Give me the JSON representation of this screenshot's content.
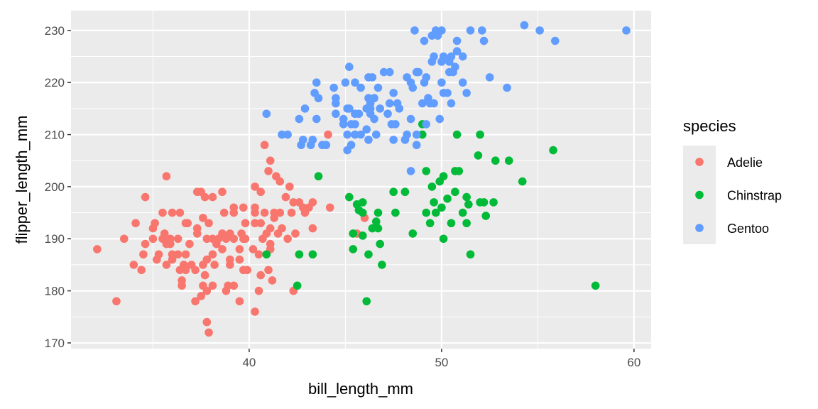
{
  "chart_data": {
    "type": "scatter",
    "xlabel": "bill_length_mm",
    "ylabel": "flipper_length_mm",
    "xlim": [
      30.74,
      60.89
    ],
    "ylim": [
      168.9,
      233.8
    ],
    "xticks": [
      40,
      50,
      60
    ],
    "xtick_labels": [
      "40",
      "50",
      "60"
    ],
    "xminor": [
      35,
      45,
      55
    ],
    "yticks": [
      170,
      180,
      190,
      200,
      210,
      220,
      230
    ],
    "ytick_labels": [
      "170",
      "180",
      "190",
      "200",
      "210",
      "220",
      "230"
    ],
    "yminor": [
      175,
      185,
      195,
      205,
      215,
      225
    ],
    "grid": true,
    "legend": {
      "title": "species",
      "placement": "right"
    },
    "series": [
      {
        "name": "Adelie",
        "color": "#F8766D",
        "points": [
          [
            32.1,
            188
          ],
          [
            33.1,
            178
          ],
          [
            33.5,
            190
          ],
          [
            34.1,
            193
          ],
          [
            34.0,
            185
          ],
          [
            34.4,
            184
          ],
          [
            34.5,
            187
          ],
          [
            34.6,
            198
          ],
          [
            34.6,
            189
          ],
          [
            35.0,
            190
          ],
          [
            35.0,
            192
          ],
          [
            35.1,
            193
          ],
          [
            35.2,
            186
          ],
          [
            35.3,
            187
          ],
          [
            35.5,
            195
          ],
          [
            35.6,
            191
          ],
          [
            35.5,
            190
          ],
          [
            35.7,
            202
          ],
          [
            35.7,
            185
          ],
          [
            35.7,
            189
          ],
          [
            35.9,
            189
          ],
          [
            35.9,
            190
          ],
          [
            36.0,
            195
          ],
          [
            36.0,
            187
          ],
          [
            36.0,
            186
          ],
          [
            36.3,
            187
          ],
          [
            36.3,
            190
          ],
          [
            36.4,
            195
          ],
          [
            36.4,
            184
          ],
          [
            36.5,
            182
          ],
          [
            36.5,
            181
          ],
          [
            36.6,
            185
          ],
          [
            36.7,
            187
          ],
          [
            36.7,
            184
          ],
          [
            36.7,
            193
          ],
          [
            36.8,
            193
          ],
          [
            36.9,
            189
          ],
          [
            37.0,
            185
          ],
          [
            37.2,
            178
          ],
          [
            37.2,
            184
          ],
          [
            37.3,
            192
          ],
          [
            37.3,
            191
          ],
          [
            37.3,
            199
          ],
          [
            37.5,
            179
          ],
          [
            37.5,
            199
          ],
          [
            37.6,
            194
          ],
          [
            37.6,
            185
          ],
          [
            37.6,
            181
          ],
          [
            37.7,
            198
          ],
          [
            37.7,
            183
          ],
          [
            37.8,
            190
          ],
          [
            37.8,
            186
          ],
          [
            37.8,
            174
          ],
          [
            37.8,
            180
          ],
          [
            37.9,
            172
          ],
          [
            37.9,
            193
          ],
          [
            38.1,
            198
          ],
          [
            38.1,
            187
          ],
          [
            38.1,
            190
          ],
          [
            38.1,
            181
          ],
          [
            38.2,
            185
          ],
          [
            38.3,
            189
          ],
          [
            38.4,
            190
          ],
          [
            38.6,
            188
          ],
          [
            38.6,
            199
          ],
          [
            38.6,
            191
          ],
          [
            38.7,
            195
          ],
          [
            38.8,
            190
          ],
          [
            38.8,
            180
          ],
          [
            38.9,
            181
          ],
          [
            39.0,
            191
          ],
          [
            39.0,
            186
          ],
          [
            39.0,
            185
          ],
          [
            39.2,
            181
          ],
          [
            39.2,
            190
          ],
          [
            39.2,
            196
          ],
          [
            39.2,
            195
          ],
          [
            39.5,
            188
          ],
          [
            39.5,
            178
          ],
          [
            39.5,
            186
          ],
          [
            39.6,
            191
          ],
          [
            39.7,
            196
          ],
          [
            39.7,
            190
          ],
          [
            39.7,
            184
          ],
          [
            39.8,
            193
          ],
          [
            39.8,
            190
          ],
          [
            39.9,
            184
          ],
          [
            40.2,
            188
          ],
          [
            40.3,
            200
          ],
          [
            40.3,
            193
          ],
          [
            40.3,
            176
          ],
          [
            40.3,
            196
          ],
          [
            40.3,
            195
          ],
          [
            40.5,
            187
          ],
          [
            40.5,
            180
          ],
          [
            40.6,
            183
          ],
          [
            40.6,
            193
          ],
          [
            40.6,
            199
          ],
          [
            40.7,
            190
          ],
          [
            40.8,
            208
          ],
          [
            40.8,
            195
          ],
          [
            40.9,
            191
          ],
          [
            41.0,
            184
          ],
          [
            41.0,
            203
          ],
          [
            41.1,
            205
          ],
          [
            41.1,
            192
          ],
          [
            41.1,
            189
          ],
          [
            41.1,
            188
          ],
          [
            41.2,
            182
          ],
          [
            41.3,
            195
          ],
          [
            41.3,
            194
          ],
          [
            41.4,
            202
          ],
          [
            41.5,
            191
          ],
          [
            41.6,
            201
          ],
          [
            41.6,
            195
          ],
          [
            41.7,
            192
          ],
          [
            41.9,
            198
          ],
          [
            42.0,
            190
          ],
          [
            42.1,
            200
          ],
          [
            42.2,
            195
          ],
          [
            42.3,
            197
          ],
          [
            42.3,
            180
          ],
          [
            42.4,
            191
          ],
          [
            42.6,
            197
          ],
          [
            42.8,
            196
          ],
          [
            42.9,
            195
          ],
          [
            43.1,
            196
          ],
          [
            43.3,
            197
          ],
          [
            43.3,
            192
          ],
          [
            44.2,
            196
          ],
          [
            44.1,
            210
          ],
          [
            45.6,
            191
          ],
          [
            46.0,
            194
          ]
        ]
      },
      {
        "name": "Chinstrap",
        "color": "#00BA38",
        "points": [
          [
            40.9,
            187
          ],
          [
            42.5,
            181
          ],
          [
            42.6,
            187
          ],
          [
            43.3,
            187
          ],
          [
            43.6,
            202
          ],
          [
            45.2,
            198
          ],
          [
            45.4,
            191
          ],
          [
            45.4,
            188
          ],
          [
            45.6,
            196.6
          ],
          [
            45.7,
            195.5
          ],
          [
            45.9,
            197
          ],
          [
            45.9,
            195
          ],
          [
            45.9,
            190.6
          ],
          [
            46.1,
            178
          ],
          [
            46.2,
            187
          ],
          [
            46.4,
            192
          ],
          [
            46.6,
            193.3
          ],
          [
            46.7,
            195
          ],
          [
            46.7,
            192
          ],
          [
            46.8,
            189
          ],
          [
            46.9,
            185
          ],
          [
            47.5,
            199
          ],
          [
            47.6,
            195
          ],
          [
            48.1,
            199
          ],
          [
            48.5,
            191
          ],
          [
            49.0,
            212
          ],
          [
            49.0,
            210
          ],
          [
            49.2,
            195
          ],
          [
            49.2,
            203
          ],
          [
            49.4,
            193
          ],
          [
            49.5,
            200
          ],
          [
            49.6,
            197
          ],
          [
            49.7,
            195
          ],
          [
            49.9,
            201
          ],
          [
            50.0,
            196
          ],
          [
            50.1,
            190
          ],
          [
            50.1,
            202
          ],
          [
            50.3,
            197.7
          ],
          [
            50.5,
            193
          ],
          [
            50.7,
            203
          ],
          [
            50.7,
            199
          ],
          [
            50.8,
            210
          ],
          [
            50.9,
            203
          ],
          [
            51.1,
            195
          ],
          [
            51.3,
            198
          ],
          [
            51.3,
            193
          ],
          [
            51.4,
            196.6
          ],
          [
            51.5,
            187
          ],
          [
            51.9,
            206
          ],
          [
            52.0,
            210
          ],
          [
            52.0,
            197
          ],
          [
            52.2,
            197
          ],
          [
            52.3,
            194.4
          ],
          [
            52.7,
            197
          ],
          [
            52.8,
            205
          ],
          [
            53.5,
            205
          ],
          [
            54.2,
            201
          ],
          [
            55.8,
            207
          ],
          [
            58.0,
            181
          ]
        ]
      },
      {
        "name": "Gentoo",
        "color": "#619CFF",
        "points": [
          [
            40.9,
            214
          ],
          [
            41.7,
            210
          ],
          [
            42.0,
            210
          ],
          [
            42.6,
            213
          ],
          [
            42.7,
            208
          ],
          [
            42.8,
            209
          ],
          [
            42.9,
            215
          ],
          [
            43.2,
            208
          ],
          [
            43.3,
            209
          ],
          [
            43.4,
            218
          ],
          [
            43.5,
            213
          ],
          [
            43.5,
            220
          ],
          [
            43.6,
            217
          ],
          [
            43.8,
            208
          ],
          [
            44.0,
            208
          ],
          [
            44.4,
            219
          ],
          [
            44.5,
            217
          ],
          [
            44.5,
            216
          ],
          [
            44.5,
            214
          ],
          [
            44.9,
            213
          ],
          [
            44.9,
            212
          ],
          [
            45.0,
            220
          ],
          [
            45.1,
            207
          ],
          [
            45.1,
            210
          ],
          [
            45.1,
            215
          ],
          [
            45.2,
            223
          ],
          [
            45.2,
            215
          ],
          [
            45.3,
            208
          ],
          [
            45.3,
            212
          ],
          [
            45.5,
            220
          ],
          [
            45.5,
            212
          ],
          [
            45.5,
            210
          ],
          [
            45.5,
            214
          ],
          [
            45.7,
            214
          ],
          [
            45.8,
            219
          ],
          [
            45.8,
            210
          ],
          [
            46.1,
            211
          ],
          [
            46.1,
            215
          ],
          [
            46.2,
            221
          ],
          [
            46.2,
            217
          ],
          [
            46.2,
            209
          ],
          [
            46.3,
            215
          ],
          [
            46.3,
            214
          ],
          [
            46.3,
            216
          ],
          [
            46.4,
            221
          ],
          [
            46.5,
            217
          ],
          [
            46.5,
            213
          ],
          [
            46.6,
            210
          ],
          [
            46.7,
            219
          ],
          [
            46.8,
            215
          ],
          [
            47.0,
            222
          ],
          [
            47.2,
            214
          ],
          [
            47.3,
            216
          ],
          [
            47.3,
            222
          ],
          [
            47.4,
            212
          ],
          [
            47.5,
            218
          ],
          [
            47.5,
            209
          ],
          [
            47.6,
            212
          ],
          [
            47.7,
            216
          ],
          [
            47.8,
            215
          ],
          [
            48.1,
            209
          ],
          [
            48.2,
            210
          ],
          [
            48.2,
            221
          ],
          [
            48.4,
            213
          ],
          [
            48.4,
            220
          ],
          [
            48.5,
            219
          ],
          [
            48.7,
            208
          ],
          [
            48.7,
            222
          ],
          [
            48.7,
            210
          ],
          [
            48.8,
            222
          ],
          [
            49.0,
            216
          ],
          [
            49.1,
            220
          ],
          [
            49.2,
            212
          ],
          [
            49.2,
            221
          ],
          [
            49.3,
            217
          ],
          [
            49.4,
            216
          ],
          [
            49.5,
            224
          ],
          [
            49.5,
            229
          ],
          [
            49.6,
            216
          ],
          [
            49.6,
            225
          ],
          [
            49.7,
            230
          ],
          [
            49.8,
            229
          ],
          [
            49.9,
            213
          ],
          [
            50.0,
            230
          ],
          [
            50.0,
            220
          ],
          [
            50.0,
            224
          ],
          [
            50.1,
            218
          ],
          [
            50.1,
            225
          ],
          [
            50.3,
            218
          ],
          [
            50.4,
            224
          ],
          [
            50.4,
            222
          ],
          [
            50.5,
            216
          ],
          [
            50.5,
            225
          ],
          [
            50.6,
            222
          ],
          [
            50.7,
            223
          ],
          [
            50.8,
            228
          ],
          [
            50.8,
            226
          ],
          [
            51.1,
            225
          ],
          [
            51.1,
            220
          ],
          [
            51.3,
            218
          ],
          [
            51.5,
            230
          ],
          [
            52.1,
            230
          ],
          [
            52.2,
            228
          ],
          [
            52.5,
            221
          ],
          [
            53.4,
            219
          ],
          [
            54.3,
            231
          ],
          [
            49.1,
            228
          ],
          [
            48.6,
            230
          ],
          [
            55.1,
            230
          ],
          [
            55.9,
            228
          ],
          [
            59.6,
            230
          ],
          [
            48.4,
            203
          ]
        ]
      }
    ]
  }
}
